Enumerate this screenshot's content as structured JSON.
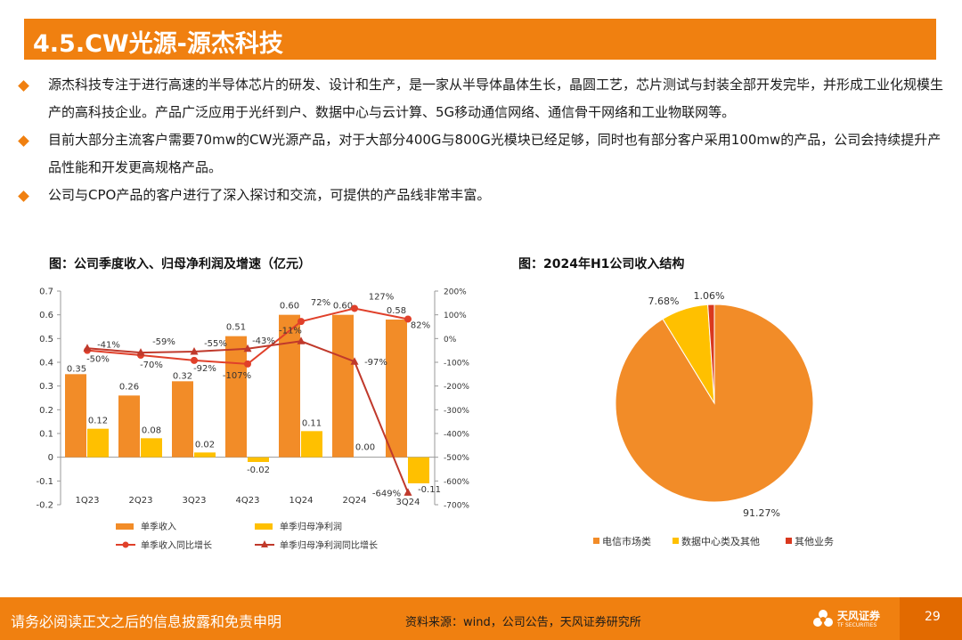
{
  "slide": {
    "title": "4.5.CW光源-源杰科技",
    "bullets": [
      "源杰科技专注于进行高速的半导体芯片的研发、设计和生产，是一家从半导体晶体生长，晶圆工艺，芯片测试与封装全部开发完毕，并形成工业化规模生产的高科技企业。产品广泛应用于光纤到户、数据中心与云计算、5G移动通信网络、通信骨干网络和工业物联网等。",
      "目前大部分主流客户需要70mw的CW光源产品，对于大部分400G与800G光模块已经足够，同时也有部分客户采用100mw的产品，公司会持续提升产品性能和开发更高规格产品。",
      "公司与CPO产品的客户进行了深入探讨和交流，可提供的产品线非常丰富。"
    ]
  },
  "colors": {
    "accent": "#F08010",
    "revenue": "#F28C28",
    "profit": "#FFC000",
    "line": "#E0402A",
    "other": "#D9381E"
  },
  "chart_data": [
    {
      "type": "bar",
      "title": "图：公司季度收入、归母净利润及增速（亿元）",
      "categories": [
        "1Q23",
        "2Q23",
        "3Q23",
        "4Q23",
        "1Q24",
        "2Q24",
        "3Q24"
      ],
      "ylim": [
        -0.2,
        0.7
      ],
      "yticks": [
        "0.7",
        "0.6",
        "0.5",
        "0.4",
        "0.3",
        "0.2",
        "0.1",
        "0",
        "-0.1",
        "-0.2"
      ],
      "y2lim": [
        -700,
        200
      ],
      "y2ticks": [
        "200%",
        "100%",
        "0%",
        "-100%",
        "-200%",
        "-300%",
        "-400%",
        "-500%",
        "-600%",
        "-700%"
      ],
      "series": [
        {
          "name": "单季收入",
          "kind": "bar",
          "values": [
            0.35,
            0.26,
            0.32,
            0.51,
            0.6,
            0.6,
            0.58
          ],
          "labels": [
            "0.35",
            "0.26",
            "0.32",
            "0.51",
            "0.60",
            "0.60",
            "0.58"
          ]
        },
        {
          "name": "单季归母净利润",
          "kind": "bar",
          "values": [
            0.12,
            0.08,
            0.02,
            -0.02,
            0.11,
            0.0,
            -0.11
          ],
          "labels": [
            "0.12",
            "0.08",
            "0.02",
            "-0.02",
            "0.11",
            "0.00",
            "-0.11"
          ]
        },
        {
          "name": "单季收入同比增长",
          "kind": "line",
          "axis": "right",
          "values": [
            -50,
            -70,
            -92,
            -107,
            72,
            127,
            82
          ],
          "labels": [
            "-50%",
            "-70%",
            "-92%",
            "-107%",
            "72%",
            "127%",
            "82%"
          ]
        },
        {
          "name": "单季归母净利润同比增长",
          "kind": "line",
          "axis": "right",
          "values": [
            -41,
            -59,
            -55,
            -43,
            -11,
            -97,
            -649
          ],
          "labels": [
            "-41%",
            "-59%",
            "-55%",
            "-43%",
            "-11%",
            "-97%",
            "-649%"
          ]
        }
      ]
    },
    {
      "type": "pie",
      "title": "图：2024年H1公司收入结构",
      "slices": [
        {
          "name": "电信市场类",
          "value": 91.27,
          "label": "91.27%",
          "color": "#F28C28"
        },
        {
          "name": "数据中心类及其他",
          "value": 7.68,
          "label": "7.68%",
          "color": "#FFC000"
        },
        {
          "name": "其他业务",
          "value": 1.06,
          "label": "1.06%",
          "color": "#D9381E"
        }
      ]
    }
  ],
  "footer": {
    "disclaimer": "请务必阅读正文之后的信息披露和免责申明",
    "source": "资料来源：wind，公司公告，天风证券研究所",
    "logo_text": "天风证券",
    "logo_sub": "TF SECURITIES",
    "page": "29"
  }
}
